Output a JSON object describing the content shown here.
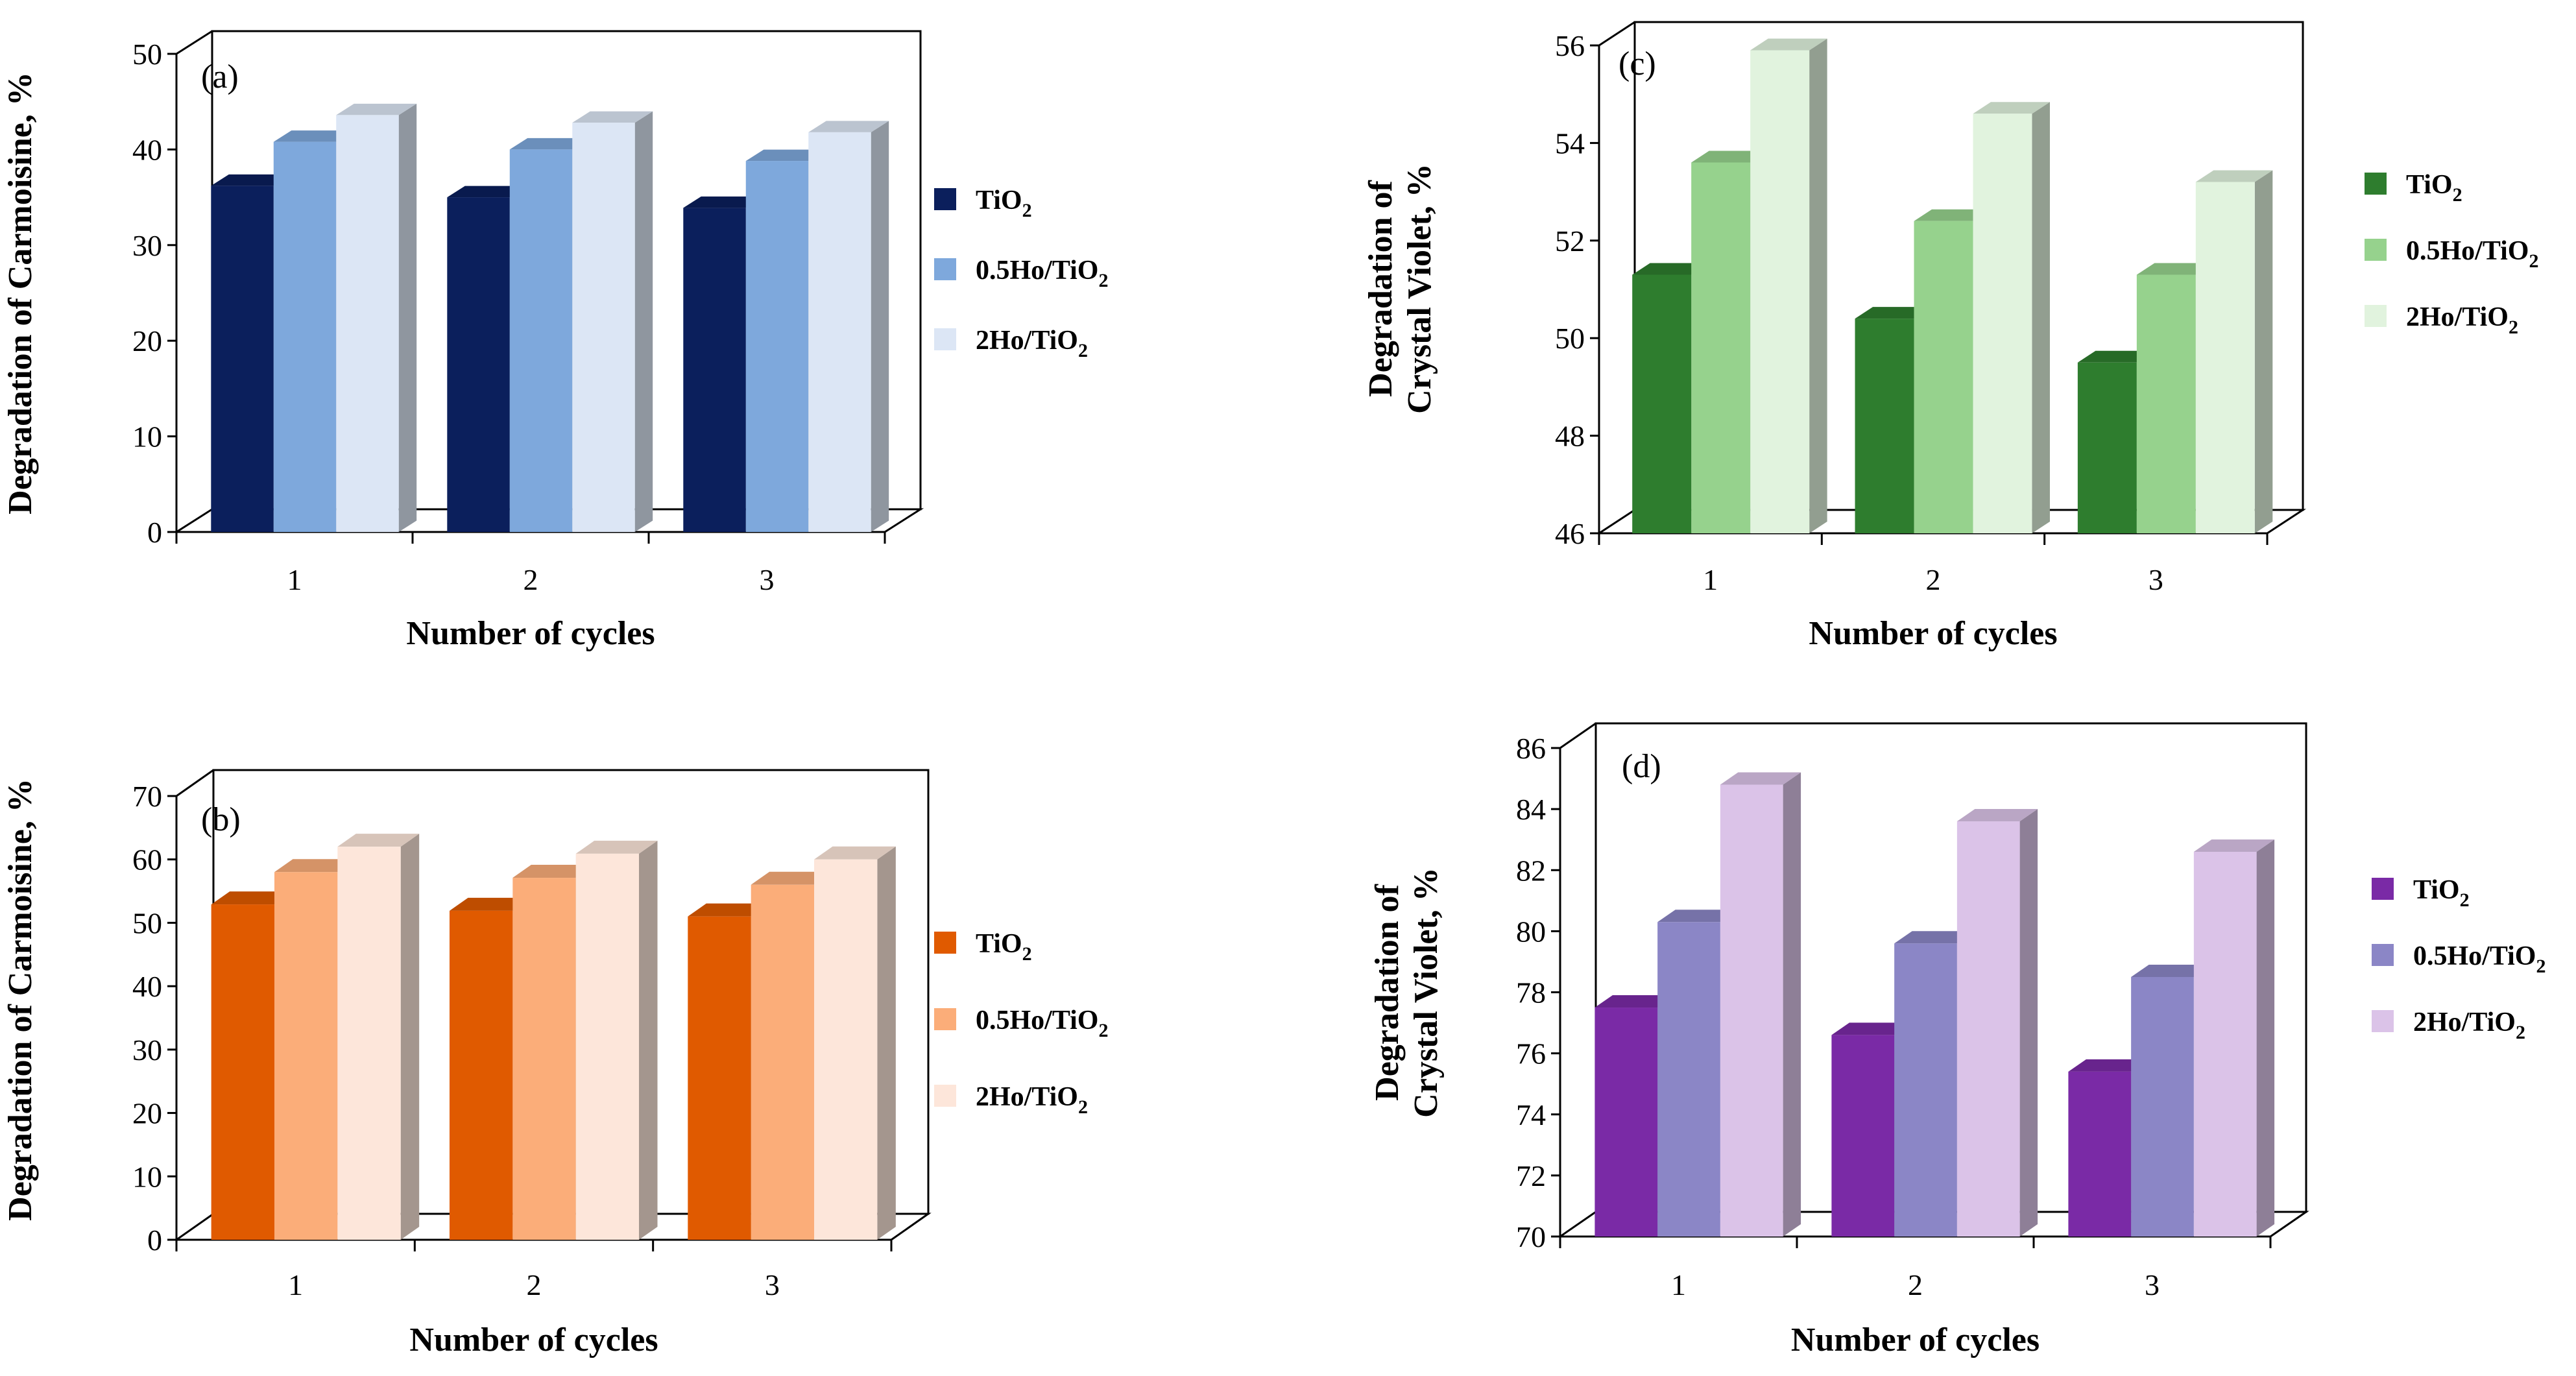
{
  "chart_data": [
    {
      "id": "a",
      "type": "bar",
      "panel_label": "(a)",
      "categories": [
        "1",
        "2",
        "3"
      ],
      "series": [
        {
          "name_base": "TiO",
          "name_sub": "2",
          "color": "#0b1f5c",
          "values": [
            36.2,
            35.0,
            33.9
          ]
        },
        {
          "name_base": "0.5Ho/TiO",
          "name_sub": "2",
          "color": "#7ea8dc",
          "values": [
            40.8,
            40.0,
            38.8
          ]
        },
        {
          "name_base": "2Ho/TiO",
          "name_sub": "2",
          "color": "#dce6f5",
          "values": [
            43.6,
            42.8,
            41.8
          ]
        }
      ],
      "xlabel": "Number of cycles",
      "ylabel": [
        "Degradation of Carmoisine, %"
      ],
      "ylim": [
        0,
        50
      ],
      "yticks": [
        "0",
        "10",
        "20",
        "30",
        "40",
        "50"
      ],
      "legend": "right"
    },
    {
      "id": "b",
      "type": "bar",
      "panel_label": "(b)",
      "categories": [
        "1",
        "2",
        "3"
      ],
      "series": [
        {
          "name_base": "TiO",
          "name_sub": "2",
          "color": "#e05a00",
          "values": [
            52.9,
            51.9,
            51.0
          ]
        },
        {
          "name_base": "0.5Ho/TiO",
          "name_sub": "2",
          "color": "#fbad79",
          "values": [
            58.0,
            57.1,
            56.0
          ]
        },
        {
          "name_base": "2Ho/TiO",
          "name_sub": "2",
          "color": "#fde6da",
          "values": [
            62.0,
            60.9,
            60.0
          ]
        }
      ],
      "xlabel": "Number of cycles",
      "ylabel": [
        "Degradation of Carmoisine, %"
      ],
      "ylim": [
        0,
        70
      ],
      "yticks": [
        "0",
        "10",
        "20",
        "30",
        "40",
        "50",
        "60",
        "70"
      ],
      "legend": "right"
    },
    {
      "id": "c",
      "type": "bar",
      "panel_label": "(c)",
      "categories": [
        "1",
        "2",
        "3"
      ],
      "series": [
        {
          "name_base": "TiO",
          "name_sub": "2",
          "color": "#2e7d2e",
          "values": [
            51.3,
            50.4,
            49.5
          ]
        },
        {
          "name_base": "0.5Ho/TiO",
          "name_sub": "2",
          "color": "#96d28d",
          "values": [
            53.6,
            52.4,
            51.3
          ]
        },
        {
          "name_base": "2Ho/TiO",
          "name_sub": "2",
          "color": "#e1f3de",
          "values": [
            55.9,
            54.6,
            53.2
          ]
        }
      ],
      "xlabel": "Number of cycles",
      "ylabel": [
        "Degradation of",
        "Crystal Violet, %"
      ],
      "ylim": [
        46,
        56
      ],
      "yticks": [
        "46",
        "48",
        "50",
        "52",
        "54",
        "56"
      ],
      "legend": "right"
    },
    {
      "id": "d",
      "type": "bar",
      "panel_label": "(d)",
      "categories": [
        "1",
        "2",
        "3"
      ],
      "series": [
        {
          "name_base": "TiO",
          "name_sub": "2",
          "color": "#7a2aa6",
          "values": [
            77.5,
            76.6,
            75.4
          ]
        },
        {
          "name_base": "0.5Ho/TiO",
          "name_sub": "2",
          "color": "#8b86c6",
          "values": [
            80.3,
            79.6,
            78.5
          ]
        },
        {
          "name_base": "2Ho/TiO",
          "name_sub": "2",
          "color": "#dbc3e8",
          "values": [
            84.8,
            83.6,
            82.6
          ]
        }
      ],
      "xlabel": "Number of cycles",
      "ylabel": [
        "Degradation of",
        "Crystal Violet, %"
      ],
      "ylim": [
        70,
        86
      ],
      "yticks": [
        "70",
        "72",
        "74",
        "76",
        "78",
        "80",
        "82",
        "84",
        "86"
      ],
      "legend": "right"
    }
  ]
}
